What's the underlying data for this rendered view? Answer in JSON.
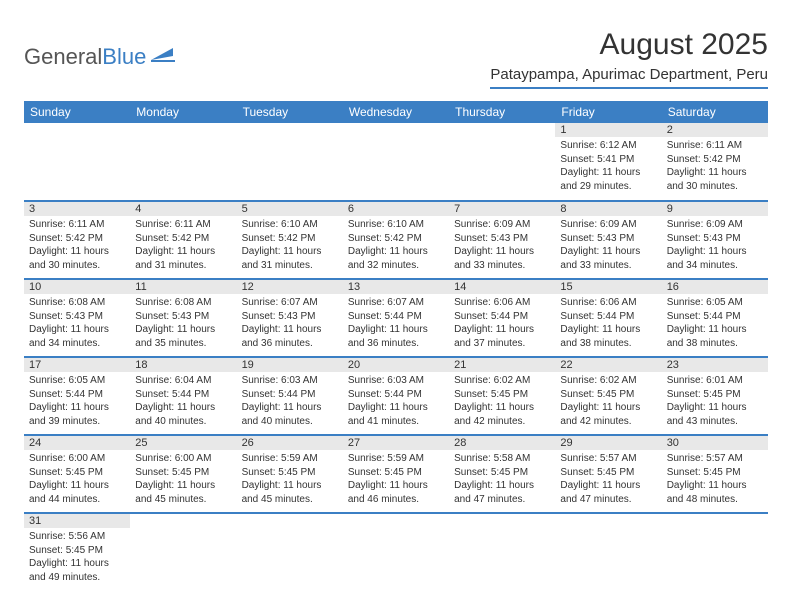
{
  "brand": {
    "name_part1": "General",
    "name_part2": "Blue"
  },
  "title": "August 2025",
  "location": "Pataypampa, Apurimac Department, Peru",
  "colors": {
    "accent": "#3b7fc4",
    "day_header_bg": "#e8e8e8",
    "text": "#333333",
    "bg": "#ffffff"
  },
  "day_headers": [
    "Sunday",
    "Monday",
    "Tuesday",
    "Wednesday",
    "Thursday",
    "Friday",
    "Saturday"
  ],
  "weeks": [
    [
      {
        "n": "",
        "sr": "",
        "ss": "",
        "dl": ""
      },
      {
        "n": "",
        "sr": "",
        "ss": "",
        "dl": ""
      },
      {
        "n": "",
        "sr": "",
        "ss": "",
        "dl": ""
      },
      {
        "n": "",
        "sr": "",
        "ss": "",
        "dl": ""
      },
      {
        "n": "",
        "sr": "",
        "ss": "",
        "dl": ""
      },
      {
        "n": "1",
        "sr": "Sunrise: 6:12 AM",
        "ss": "Sunset: 5:41 PM",
        "dl": "Daylight: 11 hours and 29 minutes."
      },
      {
        "n": "2",
        "sr": "Sunrise: 6:11 AM",
        "ss": "Sunset: 5:42 PM",
        "dl": "Daylight: 11 hours and 30 minutes."
      }
    ],
    [
      {
        "n": "3",
        "sr": "Sunrise: 6:11 AM",
        "ss": "Sunset: 5:42 PM",
        "dl": "Daylight: 11 hours and 30 minutes."
      },
      {
        "n": "4",
        "sr": "Sunrise: 6:11 AM",
        "ss": "Sunset: 5:42 PM",
        "dl": "Daylight: 11 hours and 31 minutes."
      },
      {
        "n": "5",
        "sr": "Sunrise: 6:10 AM",
        "ss": "Sunset: 5:42 PM",
        "dl": "Daylight: 11 hours and 31 minutes."
      },
      {
        "n": "6",
        "sr": "Sunrise: 6:10 AM",
        "ss": "Sunset: 5:42 PM",
        "dl": "Daylight: 11 hours and 32 minutes."
      },
      {
        "n": "7",
        "sr": "Sunrise: 6:09 AM",
        "ss": "Sunset: 5:43 PM",
        "dl": "Daylight: 11 hours and 33 minutes."
      },
      {
        "n": "8",
        "sr": "Sunrise: 6:09 AM",
        "ss": "Sunset: 5:43 PM",
        "dl": "Daylight: 11 hours and 33 minutes."
      },
      {
        "n": "9",
        "sr": "Sunrise: 6:09 AM",
        "ss": "Sunset: 5:43 PM",
        "dl": "Daylight: 11 hours and 34 minutes."
      }
    ],
    [
      {
        "n": "10",
        "sr": "Sunrise: 6:08 AM",
        "ss": "Sunset: 5:43 PM",
        "dl": "Daylight: 11 hours and 34 minutes."
      },
      {
        "n": "11",
        "sr": "Sunrise: 6:08 AM",
        "ss": "Sunset: 5:43 PM",
        "dl": "Daylight: 11 hours and 35 minutes."
      },
      {
        "n": "12",
        "sr": "Sunrise: 6:07 AM",
        "ss": "Sunset: 5:43 PM",
        "dl": "Daylight: 11 hours and 36 minutes."
      },
      {
        "n": "13",
        "sr": "Sunrise: 6:07 AM",
        "ss": "Sunset: 5:44 PM",
        "dl": "Daylight: 11 hours and 36 minutes."
      },
      {
        "n": "14",
        "sr": "Sunrise: 6:06 AM",
        "ss": "Sunset: 5:44 PM",
        "dl": "Daylight: 11 hours and 37 minutes."
      },
      {
        "n": "15",
        "sr": "Sunrise: 6:06 AM",
        "ss": "Sunset: 5:44 PM",
        "dl": "Daylight: 11 hours and 38 minutes."
      },
      {
        "n": "16",
        "sr": "Sunrise: 6:05 AM",
        "ss": "Sunset: 5:44 PM",
        "dl": "Daylight: 11 hours and 38 minutes."
      }
    ],
    [
      {
        "n": "17",
        "sr": "Sunrise: 6:05 AM",
        "ss": "Sunset: 5:44 PM",
        "dl": "Daylight: 11 hours and 39 minutes."
      },
      {
        "n": "18",
        "sr": "Sunrise: 6:04 AM",
        "ss": "Sunset: 5:44 PM",
        "dl": "Daylight: 11 hours and 40 minutes."
      },
      {
        "n": "19",
        "sr": "Sunrise: 6:03 AM",
        "ss": "Sunset: 5:44 PM",
        "dl": "Daylight: 11 hours and 40 minutes."
      },
      {
        "n": "20",
        "sr": "Sunrise: 6:03 AM",
        "ss": "Sunset: 5:44 PM",
        "dl": "Daylight: 11 hours and 41 minutes."
      },
      {
        "n": "21",
        "sr": "Sunrise: 6:02 AM",
        "ss": "Sunset: 5:45 PM",
        "dl": "Daylight: 11 hours and 42 minutes."
      },
      {
        "n": "22",
        "sr": "Sunrise: 6:02 AM",
        "ss": "Sunset: 5:45 PM",
        "dl": "Daylight: 11 hours and 42 minutes."
      },
      {
        "n": "23",
        "sr": "Sunrise: 6:01 AM",
        "ss": "Sunset: 5:45 PM",
        "dl": "Daylight: 11 hours and 43 minutes."
      }
    ],
    [
      {
        "n": "24",
        "sr": "Sunrise: 6:00 AM",
        "ss": "Sunset: 5:45 PM",
        "dl": "Daylight: 11 hours and 44 minutes."
      },
      {
        "n": "25",
        "sr": "Sunrise: 6:00 AM",
        "ss": "Sunset: 5:45 PM",
        "dl": "Daylight: 11 hours and 45 minutes."
      },
      {
        "n": "26",
        "sr": "Sunrise: 5:59 AM",
        "ss": "Sunset: 5:45 PM",
        "dl": "Daylight: 11 hours and 45 minutes."
      },
      {
        "n": "27",
        "sr": "Sunrise: 5:59 AM",
        "ss": "Sunset: 5:45 PM",
        "dl": "Daylight: 11 hours and 46 minutes."
      },
      {
        "n": "28",
        "sr": "Sunrise: 5:58 AM",
        "ss": "Sunset: 5:45 PM",
        "dl": "Daylight: 11 hours and 47 minutes."
      },
      {
        "n": "29",
        "sr": "Sunrise: 5:57 AM",
        "ss": "Sunset: 5:45 PM",
        "dl": "Daylight: 11 hours and 47 minutes."
      },
      {
        "n": "30",
        "sr": "Sunrise: 5:57 AM",
        "ss": "Sunset: 5:45 PM",
        "dl": "Daylight: 11 hours and 48 minutes."
      }
    ],
    [
      {
        "n": "31",
        "sr": "Sunrise: 5:56 AM",
        "ss": "Sunset: 5:45 PM",
        "dl": "Daylight: 11 hours and 49 minutes."
      },
      {
        "n": "",
        "sr": "",
        "ss": "",
        "dl": ""
      },
      {
        "n": "",
        "sr": "",
        "ss": "",
        "dl": ""
      },
      {
        "n": "",
        "sr": "",
        "ss": "",
        "dl": ""
      },
      {
        "n": "",
        "sr": "",
        "ss": "",
        "dl": ""
      },
      {
        "n": "",
        "sr": "",
        "ss": "",
        "dl": ""
      },
      {
        "n": "",
        "sr": "",
        "ss": "",
        "dl": ""
      }
    ]
  ]
}
